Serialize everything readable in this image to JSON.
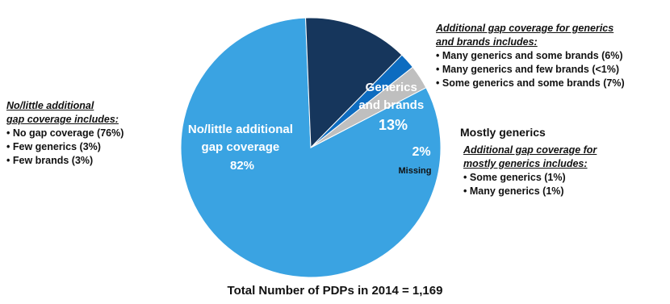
{
  "chart_data": {
    "type": "pie",
    "title": "",
    "slices": [
      {
        "label": "No/little additional gap coverage",
        "value": 82,
        "value_label": "82%",
        "color": "#3aa3e2"
      },
      {
        "label": "Generics and brands",
        "value": 13,
        "value_label": "13%",
        "color": "#16365c"
      },
      {
        "label": "Mostly generics",
        "value": 2,
        "value_label": "2%",
        "color": "#0d6cc0"
      },
      {
        "label": "Missing",
        "value": 3,
        "value_label": "",
        "color": "#bfbfbf"
      }
    ],
    "start_angle_deg": 62.5,
    "direction": "clockwise"
  },
  "labels": {
    "no_little_line1": "No/little additional",
    "no_little_line2": "gap coverage",
    "no_little_pct": "82%",
    "gb_line1": "Generics",
    "gb_line2": "and brands",
    "gb_pct": "13%",
    "mg_pct": "2%",
    "missing": "Missing",
    "mostly_generics_title": "Mostly generics"
  },
  "notes": {
    "left": {
      "heading_line1": "No/little additional",
      "heading_line2": "gap coverage includes:",
      "items": [
        "No gap coverage (76%)",
        "Few generics (3%)",
        "Few brands (3%)"
      ]
    },
    "top_right": {
      "heading_line1": "Additional gap coverage for generics",
      "heading_line2": "and brands includes:",
      "items": [
        "Many generics and some brands (6%)",
        "Many generics and few brands (<1%)",
        "Some generics and some brands (7%)"
      ]
    },
    "mid_right": {
      "heading_line1": "Additional gap coverage for",
      "heading_line2": "mostly generics includes:",
      "items": [
        "Some generics (1%)",
        "Many generics (1%)"
      ]
    }
  },
  "footer": "Total Number of PDPs in 2014 = 1,169"
}
